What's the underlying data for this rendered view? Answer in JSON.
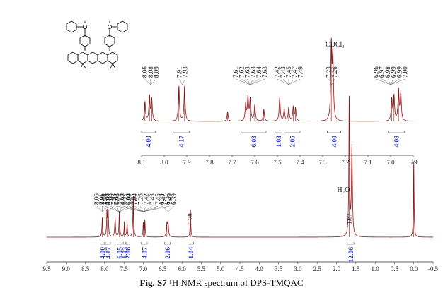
{
  "caption": {
    "figure_label": "Fig. S7",
    "text": "¹H NMR spectrum of DPS-TMQAC"
  },
  "colors": {
    "spectrum": "#8b1a1a",
    "integration": "#2b35c8",
    "axis": "#333333"
  },
  "structure_icon": "dps-tmqac-molecule",
  "chart_data": [
    {
      "type": "line",
      "name": "full-spectrum",
      "xlabel": "",
      "ylabel": "",
      "x_reversed": true,
      "xlim": [
        -0.5,
        9.5
      ],
      "x_ticks": [
        "9.5",
        "9.0",
        "8.5",
        "8.0",
        "7.5",
        "7.0",
        "6.5",
        "6.0",
        "5.5",
        "5.0",
        "4.5",
        "4.0",
        "3.5",
        "3.0",
        "2.5",
        "2.0",
        "1.5",
        "1.0",
        "0.5",
        "0.0",
        "-0.5"
      ],
      "peaks": [
        {
          "ppm": 0.0,
          "height": 0.55,
          "width": 0.01
        },
        {
          "ppm": 1.6,
          "height": 0.65,
          "width": 0.015
        },
        {
          "ppm": 1.67,
          "height": 1.0,
          "width": 0.012
        },
        {
          "ppm": 5.78,
          "height": 0.2,
          "width": 0.01
        },
        {
          "ppm": 6.36,
          "height": 0.1,
          "width": 0.015
        },
        {
          "ppm": 6.39,
          "height": 0.09,
          "width": 0.015
        },
        {
          "ppm": 6.96,
          "height": 0.12,
          "width": 0.01
        },
        {
          "ppm": 7.0,
          "height": 0.1,
          "width": 0.01
        },
        {
          "ppm": 7.26,
          "height": 0.3,
          "width": 0.012
        },
        {
          "ppm": 7.42,
          "height": 0.1,
          "width": 0.01
        },
        {
          "ppm": 7.49,
          "height": 0.11,
          "width": 0.01
        },
        {
          "ppm": 7.62,
          "height": 0.18,
          "width": 0.012
        },
        {
          "ppm": 7.73,
          "height": 0.14,
          "width": 0.012
        },
        {
          "ppm": 7.91,
          "height": 0.17,
          "width": 0.012
        },
        {
          "ppm": 7.94,
          "height": 0.18,
          "width": 0.012
        },
        {
          "ppm": 8.06,
          "height": 0.14,
          "width": 0.012
        }
      ],
      "annotations": [
        {
          "text": "H₂O",
          "ppm": 1.6
        }
      ],
      "peak_labels": [
        {
          "text": "1.67",
          "ppm": 1.67
        },
        {
          "text": "5.78",
          "ppm": 5.78
        }
      ],
      "peak_label_groups": [
        {
          "ppm": 6.36,
          "labels": [
            "6.34",
            "6.36",
            "6.39"
          ]
        },
        {
          "ppm": 7.0,
          "labels": [
            "6.96",
            "6.97",
            "6.99",
            "7.00",
            "7.26",
            "7.42",
            "7.43",
            "7.45",
            "7.47",
            "7.49"
          ]
        },
        {
          "ppm": 7.62,
          "labels": [
            "7.56",
            "7.60",
            "7.62",
            "7.63",
            "7.64",
            "7.72"
          ]
        },
        {
          "ppm": 7.92,
          "labels": [
            "7.91",
            "7.92",
            "7.93"
          ]
        },
        {
          "ppm": 8.06,
          "labels": [
            "8.06",
            "8.06",
            "8.09"
          ]
        }
      ],
      "integrals": [
        {
          "from": 1.55,
          "to": 1.72,
          "label": "12.06"
        },
        {
          "from": 5.7,
          "to": 5.85,
          "label": "1.04"
        },
        {
          "from": 6.3,
          "to": 6.45,
          "label": "2.06"
        },
        {
          "from": 6.9,
          "to": 7.05,
          "label": "4.07"
        },
        {
          "from": 7.35,
          "to": 7.45,
          "label": "2.06"
        },
        {
          "from": 7.45,
          "to": 7.52,
          "label": "1.03"
        },
        {
          "from": 7.55,
          "to": 7.68,
          "label": "6.05"
        },
        {
          "from": 7.85,
          "to": 7.98,
          "label": "4.17"
        },
        {
          "from": 8.0,
          "to": 8.12,
          "label": "4.00"
        }
      ]
    },
    {
      "type": "line",
      "name": "inset-aromatic",
      "xlabel": "",
      "ylabel": "",
      "x_reversed": true,
      "xlim": [
        6.9,
        8.1
      ],
      "x_ticks": [
        "8.1",
        "8.0",
        "7.9",
        "7.8",
        "7.7",
        "7.6",
        "7.5",
        "7.4",
        "7.3",
        "7.2",
        "7.1",
        "7.0",
        "6.9"
      ],
      "peaks": [
        {
          "ppm": 6.955,
          "height": 0.35,
          "width": 0.003
        },
        {
          "ppm": 6.965,
          "height": 0.4,
          "width": 0.003
        },
        {
          "ppm": 6.985,
          "height": 0.32,
          "width": 0.003
        },
        {
          "ppm": 6.995,
          "height": 0.28,
          "width": 0.003
        },
        {
          "ppm": 7.255,
          "height": 0.8,
          "width": 0.003
        },
        {
          "ppm": 7.262,
          "height": 0.95,
          "width": 0.003
        },
        {
          "ppm": 7.42,
          "height": 0.16,
          "width": 0.003
        },
        {
          "ppm": 7.43,
          "height": 0.18,
          "width": 0.003
        },
        {
          "ppm": 7.45,
          "height": 0.17,
          "width": 0.003
        },
        {
          "ppm": 7.47,
          "height": 0.15,
          "width": 0.003
        },
        {
          "ppm": 7.49,
          "height": 0.3,
          "width": 0.003
        },
        {
          "ppm": 7.56,
          "height": 0.15,
          "width": 0.003
        },
        {
          "ppm": 7.6,
          "height": 0.2,
          "width": 0.003
        },
        {
          "ppm": 7.62,
          "height": 0.28,
          "width": 0.003
        },
        {
          "ppm": 7.63,
          "height": 0.3,
          "width": 0.003
        },
        {
          "ppm": 7.64,
          "height": 0.22,
          "width": 0.003
        },
        {
          "ppm": 7.72,
          "height": 0.12,
          "width": 0.003
        },
        {
          "ppm": 7.91,
          "height": 0.45,
          "width": 0.003
        },
        {
          "ppm": 7.935,
          "height": 0.45,
          "width": 0.003
        },
        {
          "ppm": 8.055,
          "height": 0.28,
          "width": 0.003
        },
        {
          "ppm": 8.065,
          "height": 0.32,
          "width": 0.003
        },
        {
          "ppm": 8.085,
          "height": 0.25,
          "width": 0.003
        }
      ],
      "annotations": [
        {
          "text": "CDCl₃",
          "ppm": 7.26
        }
      ],
      "peak_label_groups": [
        {
          "ppm": 7.0,
          "labels": [
            "6.96",
            "6.97",
            "6.98",
            "6.99",
            "6.99",
            "7.00"
          ]
        },
        {
          "ppm": 7.26,
          "labels": [
            "7.23",
            "7.26"
          ]
        },
        {
          "ppm": 7.45,
          "labels": [
            "7.42",
            "7.43",
            "7.45",
            "7.47",
            "7.49"
          ]
        },
        {
          "ppm": 7.62,
          "labels": [
            "7.61",
            "7.62",
            "7.63",
            "7.63",
            "7.64",
            "7.63"
          ]
        },
        {
          "ppm": 7.92,
          "labels": [
            "7.91",
            "7.93"
          ]
        },
        {
          "ppm": 8.06,
          "labels": [
            "8.06",
            "8.08",
            "8.09"
          ]
        }
      ],
      "integrals": [
        {
          "from": 6.94,
          "to": 7.01,
          "label": "4.08"
        },
        {
          "from": 7.22,
          "to": 7.28,
          "label": "4.00"
        },
        {
          "from": 7.4,
          "to": 7.47,
          "label": "2.05"
        },
        {
          "from": 7.48,
          "to": 7.51,
          "label": "1.03"
        },
        {
          "from": 7.55,
          "to": 7.66,
          "label": "6.03"
        },
        {
          "from": 7.89,
          "to": 7.96,
          "label": "4.17"
        },
        {
          "from": 8.04,
          "to": 8.1,
          "label": "4.00"
        }
      ]
    }
  ]
}
